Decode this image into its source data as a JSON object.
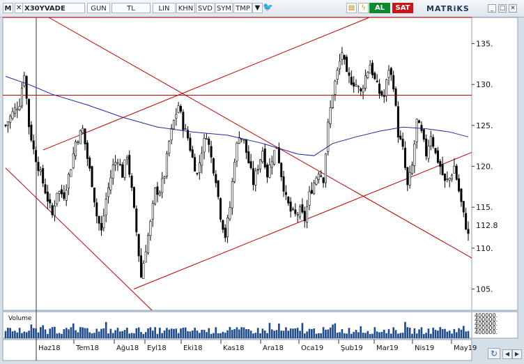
{
  "toolbar": {
    "menu_label": "M",
    "symbol": "X30YVADE",
    "buttons": [
      "GUN",
      "TL",
      "LIN",
      "KHN",
      "SVD",
      "SYM",
      "TMP"
    ],
    "buy_label": "AL",
    "sell_label": "SAT",
    "brand": "MATRiKS",
    "colors": {
      "buy": "#0e8a2e",
      "sell": "#c8171b"
    }
  },
  "chart_data": {
    "type": "candlestick",
    "symbol": "X30YVADE",
    "x_tick_labels": [
      "Haz18",
      "Tem18",
      "Ağu18",
      "Eyl18",
      "Eki18",
      "Kas18",
      "Ara18",
      "Oca19",
      "Şub19",
      "Mar19",
      "Nis19",
      "May19"
    ],
    "y_tick_labels": [
      "135.",
      "130.",
      "125.",
      "120.",
      "115.",
      "112.8",
      "110.",
      "105."
    ],
    "y_ticks": [
      135,
      130,
      125,
      120,
      115,
      110,
      105
    ],
    "last_value": 112.8,
    "ylim": [
      102.4,
      138.2
    ],
    "grid": false,
    "volume_label": "Volume",
    "volume_axis_label": "400000.",
    "price_path": [
      [
        0,
        125
      ],
      [
        3,
        126.5
      ],
      [
        6,
        127.8
      ],
      [
        8,
        131.5
      ],
      [
        10,
        125
      ],
      [
        12,
        122
      ],
      [
        15,
        119
      ],
      [
        18,
        116
      ],
      [
        20,
        114
      ],
      [
        22,
        117
      ],
      [
        25,
        116.5
      ],
      [
        28,
        120
      ],
      [
        30,
        123
      ],
      [
        33,
        124.5
      ],
      [
        35,
        121
      ],
      [
        37,
        118
      ],
      [
        39,
        114
      ],
      [
        41,
        112
      ],
      [
        43,
        116
      ],
      [
        46,
        120
      ],
      [
        48,
        121
      ],
      [
        50,
        119
      ],
      [
        52,
        121.5
      ],
      [
        54,
        117
      ],
      [
        56,
        112
      ],
      [
        58,
        106.5
      ],
      [
        60,
        110
      ],
      [
        62,
        113
      ],
      [
        64,
        117
      ],
      [
        66,
        117
      ],
      [
        68,
        119
      ],
      [
        70,
        123
      ],
      [
        72,
        125.5
      ],
      [
        74,
        127.5
      ],
      [
        76,
        125
      ],
      [
        78,
        123.5
      ],
      [
        80,
        121
      ],
      [
        82,
        119
      ],
      [
        84,
        122
      ],
      [
        86,
        124
      ],
      [
        88,
        121
      ],
      [
        90,
        118.5
      ],
      [
        92,
        114
      ],
      [
        94,
        111.5
      ],
      [
        96,
        115
      ],
      [
        98,
        121
      ],
      [
        100,
        124
      ],
      [
        102,
        123
      ],
      [
        104,
        120.5
      ],
      [
        106,
        118
      ],
      [
        108,
        120
      ],
      [
        110,
        122
      ],
      [
        112,
        119
      ],
      [
        114,
        121
      ],
      [
        116,
        122.5
      ],
      [
        118,
        119
      ],
      [
        120,
        116
      ],
      [
        122,
        114.5
      ],
      [
        124,
        114
      ],
      [
        126,
        114.5
      ],
      [
        128,
        113.5
      ],
      [
        130,
        116.5
      ],
      [
        132,
        118
      ],
      [
        134,
        119.5
      ],
      [
        136,
        118.5
      ],
      [
        138,
        125
      ],
      [
        140,
        129
      ],
      [
        142,
        131.5
      ],
      [
        144,
        134
      ],
      [
        146,
        131
      ],
      [
        148,
        130.5
      ],
      [
        150,
        130
      ],
      [
        152,
        129
      ],
      [
        154,
        131
      ],
      [
        156,
        132.5
      ],
      [
        158,
        130.5
      ],
      [
        160,
        129
      ],
      [
        162,
        128.5
      ],
      [
        164,
        132
      ],
      [
        166,
        130
      ],
      [
        168,
        124
      ],
      [
        170,
        122
      ],
      [
        172,
        117.5
      ],
      [
        174,
        120
      ],
      [
        176,
        125.5
      ],
      [
        178,
        124
      ],
      [
        180,
        121.5
      ],
      [
        182,
        124
      ],
      [
        184,
        121.5
      ],
      [
        186,
        120
      ],
      [
        188,
        118
      ],
      [
        190,
        118.5
      ],
      [
        192,
        120
      ],
      [
        194,
        117
      ],
      [
        196,
        114
      ],
      [
        198,
        111.5
      ]
    ],
    "moving_average": {
      "color": "#1c2aa0",
      "path": [
        [
          0,
          131
        ],
        [
          10,
          130
        ],
        [
          20,
          128.8
        ],
        [
          35,
          127.5
        ],
        [
          50,
          126
        ],
        [
          65,
          124.8
        ],
        [
          80,
          124.2
        ],
        [
          95,
          123.8
        ],
        [
          110,
          122.8
        ],
        [
          125,
          121.5
        ],
        [
          132,
          121.3
        ],
        [
          140,
          122.8
        ],
        [
          150,
          123.6
        ],
        [
          160,
          124.3
        ],
        [
          170,
          124.8
        ],
        [
          180,
          124.6
        ],
        [
          190,
          124.2
        ],
        [
          198,
          123.6
        ]
      ]
    },
    "trendlines_color": "#c00000",
    "horizontal_line": {
      "y": 128.7,
      "color": "#c00000"
    }
  }
}
